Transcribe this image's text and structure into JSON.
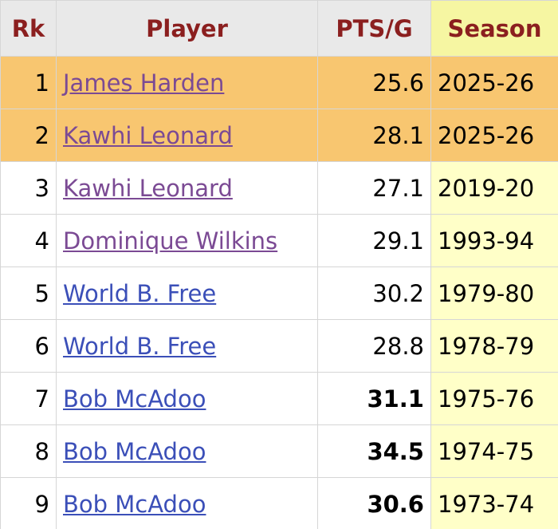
{
  "table": {
    "columns": [
      "Rk",
      "Player",
      "PTS/G",
      "Season"
    ],
    "rows": [
      [
        "1",
        "James Harden",
        "25.6",
        "2025-26"
      ],
      [
        "2",
        "Kawhi Leonard",
        "28.1",
        "2025-26"
      ],
      [
        "3",
        "Kawhi Leonard",
        "27.1",
        "2019-20"
      ],
      [
        "4",
        "Dominique Wilkins",
        "29.1",
        "1993-94"
      ],
      [
        "5",
        "World B. Free",
        "30.2",
        "1979-80"
      ],
      [
        "6",
        "World B. Free",
        "28.8",
        "1978-79"
      ],
      [
        "7",
        "Bob McAdoo",
        "31.1",
        "1975-76"
      ],
      [
        "8",
        "Bob McAdoo",
        "34.5",
        "1974-75"
      ],
      [
        "9",
        "Bob McAdoo",
        "30.6",
        "1973-74"
      ]
    ]
  }
}
